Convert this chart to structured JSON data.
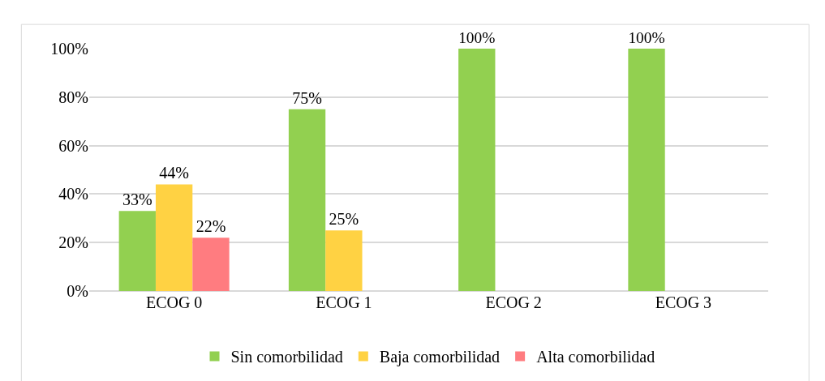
{
  "chart_data": {
    "type": "bar",
    "categories": [
      "ECOG 0",
      "ECOG 1",
      "ECOG 2",
      "ECOG 3"
    ],
    "series": [
      {
        "name": "Sin comorbilidad",
        "color": "#92d050",
        "values": [
          33,
          75,
          100,
          100
        ],
        "value_labels": [
          "33%",
          "75%",
          "100%",
          "100%"
        ]
      },
      {
        "name": "Baja comorbilidad",
        "color": "#ffd243",
        "values": [
          44,
          25,
          0,
          0
        ],
        "value_labels": [
          "44%",
          "25%",
          null,
          null
        ]
      },
      {
        "name": "Alta comorbilidad",
        "color": "#ff7c80",
        "values": [
          22,
          0,
          0,
          0
        ],
        "value_labels": [
          "22%",
          null,
          null,
          null
        ]
      }
    ],
    "ylim": [
      0,
      100
    ],
    "yticks": [
      {
        "value": 0,
        "label": "0%"
      },
      {
        "value": 20,
        "label": "20%"
      },
      {
        "value": 40,
        "label": "40%"
      },
      {
        "value": 60,
        "label": "60%"
      },
      {
        "value": 80,
        "label": "80%"
      },
      {
        "value": 100,
        "label": "100%"
      }
    ],
    "grid": "y",
    "legend": "bottom"
  }
}
